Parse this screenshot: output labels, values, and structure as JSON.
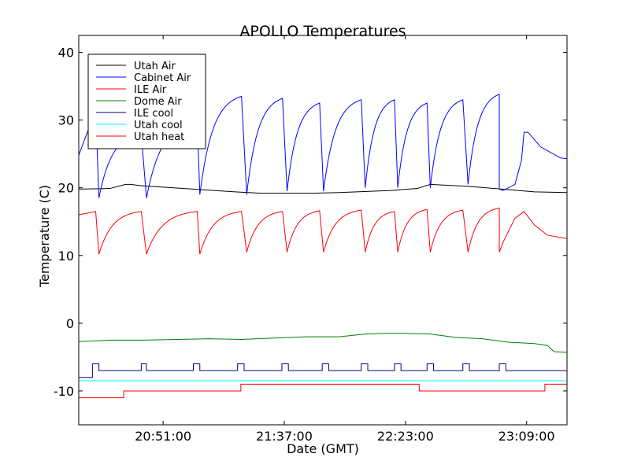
{
  "chart_data": {
    "type": "line",
    "title": "APOLLO Temperatures",
    "xlabel": "Date (GMT)",
    "ylabel": "Temperature (C)",
    "ylim": [
      -15,
      42.5
    ],
    "xlim": [
      0,
      0.75
    ],
    "y_ticks": [
      -10,
      0,
      10,
      20,
      30,
      40
    ],
    "y_tick_labels": [
      "-10",
      "0",
      "10",
      "20",
      "30",
      "40"
    ],
    "x_ticks": [
      0.1296,
      0.3157,
      0.5018,
      0.6879
    ],
    "x_tick_labels": [
      "20:51:00",
      "21:37:00",
      "22:23:00",
      "23:09:00"
    ],
    "x_unit_note": "x values are fractions of the visible time window",
    "legend": {
      "position": "upper-left",
      "entries": [
        {
          "label": "Utah Air",
          "color": "#000000"
        },
        {
          "label": "Cabinet Air",
          "color": "#0000ff"
        },
        {
          "label": "ILE Air",
          "color": "#ff0000"
        },
        {
          "label": "Dome Air",
          "color": "#008000"
        },
        {
          "label": "ILE cool",
          "color": "#000080"
        },
        {
          "label": "Utah cool",
          "color": "#00ffff"
        },
        {
          "label": "Utah heat",
          "color": "#ff0000"
        }
      ]
    },
    "series": [
      {
        "name": "Utah Air",
        "color": "#000000",
        "x": [
          0,
          0.048,
          0.072,
          0.08,
          0.096,
          0.16,
          0.24,
          0.28,
          0.36,
          0.4,
          0.48,
          0.52,
          0.54,
          0.6,
          0.7,
          0.75
        ],
        "y": [
          19.8,
          19.9,
          20.5,
          20.5,
          20.3,
          19.9,
          19.4,
          19.2,
          19.2,
          19.3,
          19.6,
          19.9,
          20.5,
          20.2,
          19.4,
          19.3
        ]
      },
      {
        "name": "Cabinet Air",
        "color": "#0000ff",
        "peaks": [
          {
            "start": 0.0,
            "end": 0.026,
            "low": 24.8,
            "high": 31.5
          },
          {
            "start": 0.031,
            "end": 0.096,
            "low": 18.5,
            "high": 28.0
          },
          {
            "start": 0.104,
            "end": 0.182,
            "low": 18.5,
            "high": 30.0
          },
          {
            "start": 0.186,
            "end": 0.25,
            "low": 19.0,
            "high": 33.5
          },
          {
            "start": 0.258,
            "end": 0.313,
            "low": 19.0,
            "high": 33.2
          },
          {
            "start": 0.32,
            "end": 0.37,
            "low": 19.5,
            "high": 32.5
          },
          {
            "start": 0.376,
            "end": 0.434,
            "low": 19.5,
            "high": 33.0
          },
          {
            "start": 0.44,
            "end": 0.485,
            "low": 20.0,
            "high": 33.0
          },
          {
            "start": 0.49,
            "end": 0.535,
            "low": 20.0,
            "high": 32.5
          },
          {
            "start": 0.54,
            "end": 0.59,
            "low": 20.0,
            "high": 33.0
          },
          {
            "start": 0.598,
            "end": 0.646,
            "low": 20.5,
            "high": 33.8
          }
        ],
        "tail": {
          "x": [
            0.646,
            0.652,
            0.67,
            0.68,
            0.684,
            0.69,
            0.71,
            0.74,
            0.75
          ],
          "y": [
            19.8,
            19.6,
            20.5,
            24.0,
            28.2,
            28.2,
            26.0,
            24.4,
            24.3
          ]
        }
      },
      {
        "name": "ILE Air",
        "color": "#ff0000",
        "peaks": [
          {
            "start": 0.0,
            "end": 0.026,
            "low": 16.0,
            "high": 16.5
          },
          {
            "start": 0.031,
            "end": 0.096,
            "low": 10.2,
            "high": 16.5
          },
          {
            "start": 0.104,
            "end": 0.182,
            "low": 10.2,
            "high": 16.5
          },
          {
            "start": 0.186,
            "end": 0.25,
            "low": 10.2,
            "high": 16.5
          },
          {
            "start": 0.258,
            "end": 0.313,
            "low": 10.5,
            "high": 16.5
          },
          {
            "start": 0.32,
            "end": 0.37,
            "low": 10.5,
            "high": 16.6
          },
          {
            "start": 0.376,
            "end": 0.434,
            "low": 10.5,
            "high": 16.7
          },
          {
            "start": 0.44,
            "end": 0.485,
            "low": 10.5,
            "high": 16.5
          },
          {
            "start": 0.49,
            "end": 0.535,
            "low": 10.5,
            "high": 16.8
          },
          {
            "start": 0.54,
            "end": 0.59,
            "low": 10.5,
            "high": 16.7
          },
          {
            "start": 0.598,
            "end": 0.646,
            "low": 10.5,
            "high": 17.0
          }
        ],
        "tail": {
          "x": [
            0.646,
            0.652,
            0.67,
            0.684,
            0.7,
            0.72,
            0.75
          ],
          "y": [
            10.5,
            12.0,
            15.5,
            16.5,
            14.5,
            13.0,
            12.5
          ]
        }
      },
      {
        "name": "Dome Air",
        "color": "#008000",
        "x": [
          0,
          0.05,
          0.1,
          0.15,
          0.2,
          0.25,
          0.3,
          0.35,
          0.4,
          0.42,
          0.44,
          0.47,
          0.5,
          0.54,
          0.58,
          0.62,
          0.66,
          0.7,
          0.72,
          0.73,
          0.75
        ],
        "y": [
          -2.7,
          -2.5,
          -2.5,
          -2.4,
          -2.3,
          -2.4,
          -2.2,
          -2.0,
          -2.0,
          -1.8,
          -1.6,
          -1.5,
          -1.5,
          -1.6,
          -2.1,
          -2.3,
          -2.8,
          -3.0,
          -3.3,
          -4.2,
          -4.3
        ]
      },
      {
        "name": "ILE cool",
        "color": "#000080",
        "step": true,
        "baseline": -7.0,
        "high": -6.0,
        "pulses": [
          [
            0.021,
            0.031
          ],
          [
            0.096,
            0.104
          ],
          [
            0.176,
            0.186
          ],
          [
            0.244,
            0.254
          ],
          [
            0.312,
            0.322
          ],
          [
            0.374,
            0.384
          ],
          [
            0.434,
            0.444
          ],
          [
            0.485,
            0.495
          ],
          [
            0.535,
            0.545
          ],
          [
            0.59,
            0.6
          ],
          [
            0.646,
            0.656
          ]
        ],
        "start_segment": {
          "x": [
            0,
            0.021
          ],
          "y": [
            -8.0,
            -8.0
          ]
        }
      },
      {
        "name": "Utah cool",
        "color": "#00ffff",
        "x": [
          0,
          0.75
        ],
        "y": [
          -8.5,
          -8.5
        ]
      },
      {
        "name": "Utah heat",
        "color": "#ff0000",
        "step": true,
        "x": [
          0,
          0.069,
          0.069,
          0.249,
          0.249,
          0.523,
          0.523,
          0.716,
          0.716,
          0.75
        ],
        "y": [
          -11,
          -11,
          -10,
          -10,
          -9,
          -9,
          -10,
          -10,
          -9,
          -9
        ]
      }
    ]
  }
}
